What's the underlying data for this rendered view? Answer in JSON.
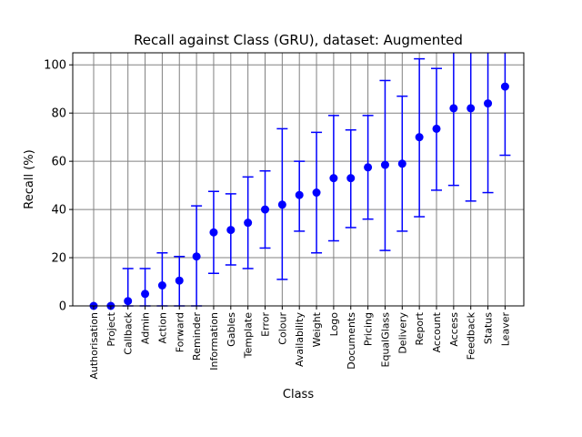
{
  "chart_data": {
    "type": "scatter",
    "title": "Recall against Class (GRU), dataset: Augmented",
    "xlabel": "Class",
    "ylabel": "Recall (%)",
    "ylim": [
      0,
      105
    ],
    "yticks": [
      "0",
      "20",
      "40",
      "60",
      "80",
      "100"
    ],
    "grid": true,
    "marker_color": "#0000ff",
    "categories": [
      "Authorisation",
      "Project",
      "Callback",
      "Admin",
      "Action",
      "Forward",
      "Reminder",
      "Information",
      "Gables",
      "Template",
      "Error",
      "Colour",
      "Availability",
      "Weight",
      "Logo",
      "Documents",
      "Pricing",
      "EqualGlass",
      "Delivery",
      "Report",
      "Account",
      "Access",
      "Feedback",
      "Status",
      "Leaver"
    ],
    "values": [
      0,
      0,
      2,
      5,
      8.5,
      10.5,
      20.5,
      30.5,
      31.5,
      34.5,
      40,
      42,
      46,
      47,
      53,
      53,
      57.5,
      58.5,
      59,
      70,
      73.5,
      82,
      82,
      84,
      91
    ],
    "error_low": [
      0,
      0,
      0,
      0,
      0,
      0,
      0,
      13.5,
      17,
      15.5,
      24,
      11,
      31,
      22,
      27,
      32.5,
      36,
      23,
      31,
      37,
      48,
      50,
      43.5,
      47,
      62.5
    ],
    "error_high": [
      0,
      0,
      15.5,
      15.5,
      22,
      20.5,
      41.5,
      47.5,
      46.5,
      53.5,
      56,
      73.5,
      60,
      72,
      79,
      73,
      79,
      93.5,
      87,
      102.5,
      98.5,
      105,
      105,
      105,
      105
    ]
  }
}
